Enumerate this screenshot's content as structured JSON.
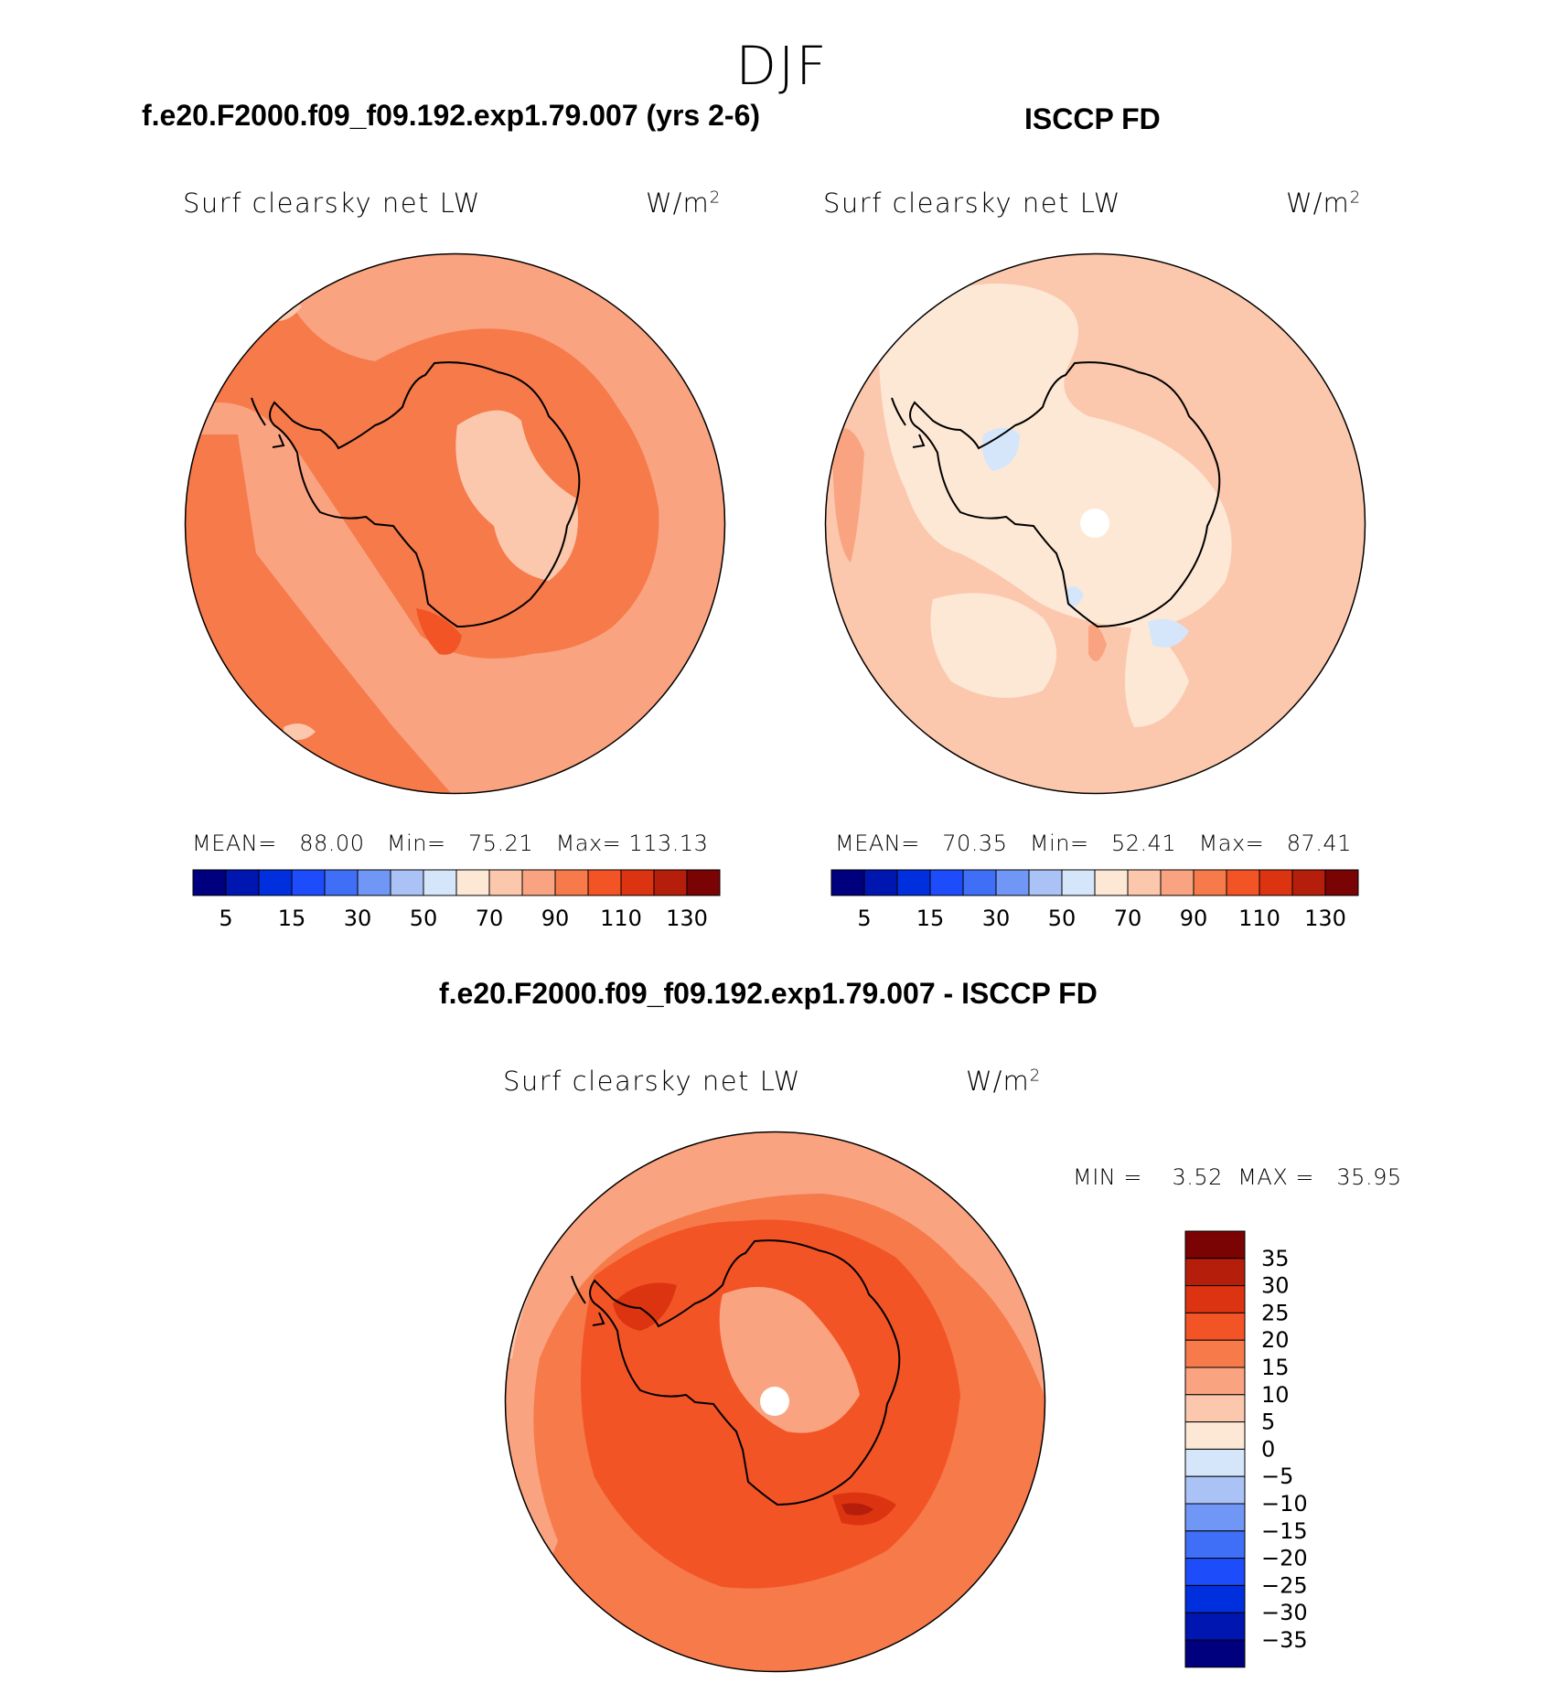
{
  "page": {
    "season_title": "DJF"
  },
  "panels": [
    {
      "case_title": "f.e20.F2000.f09_f09.192.exp1.79.007 (yrs 2-6)",
      "variable": "Surf clearsky net LW",
      "units": "W/m",
      "units_exp": "2",
      "stats": {
        "mean_label": "MEAN=",
        "mean": "88.00",
        "min_label": "Min=",
        "min": "75.21",
        "max_label": "Max=",
        "max": "113.13"
      }
    },
    {
      "case_title": "ISCCP FD",
      "variable": "Surf clearsky net LW",
      "units": "W/m",
      "units_exp": "2",
      "stats": {
        "mean_label": "MEAN=",
        "mean": "70.35",
        "min_label": "Min=",
        "min": "52.41",
        "max_label": "Max=",
        "max": "87.41"
      }
    },
    {
      "case_title": "f.e20.F2000.f09_f09.192.exp1.79.007 - ISCCP FD",
      "variable": "Surf clearsky net LW",
      "units": "W/m",
      "units_exp": "2",
      "stats": {
        "min_label": "MIN =",
        "min": "3.52",
        "max_label": "MAX =",
        "max": "35.95"
      }
    }
  ],
  "colorbar_abs": {
    "colors": [
      "#00007f",
      "#0016b0",
      "#0030dd",
      "#1d4dfa",
      "#3f6ff7",
      "#7097f5",
      "#aac2f6",
      "#d5e6fa",
      "#fde8d6",
      "#fbc8ad",
      "#f9a380",
      "#f67a4a",
      "#f25426",
      "#dc3411",
      "#b41e0b",
      "#7a0404"
    ],
    "tick_labels": [
      "5",
      "15",
      "30",
      "50",
      "70",
      "90",
      "110",
      "130"
    ]
  },
  "colorbar_diff": {
    "colors": [
      "#7a0404",
      "#b41e0b",
      "#dc3411",
      "#f25426",
      "#f67a4a",
      "#f9a380",
      "#fbc8ad",
      "#fde8d6",
      "#d5e6fa",
      "#aac2f6",
      "#7097f5",
      "#3f6ff7",
      "#1d4dfa",
      "#0030dd",
      "#0016b0",
      "#00007f"
    ],
    "tick_labels": [
      "35",
      "30",
      "25",
      "20",
      "15",
      "10",
      "5",
      "0",
      "−5",
      "−10",
      "−15",
      "−20",
      "−25",
      "−30",
      "−35"
    ]
  },
  "map_colors": {
    "model_base": "#f9a380",
    "model_high": "#f67a4a",
    "model_low": "#fbc8ad",
    "model_max": "#f25426",
    "obs_base": "#fbc8ad",
    "obs_low": "#fde8d6",
    "obs_neg": "#d5e6fa",
    "obs_high": "#f9a380",
    "diff_base": "#f67a4a",
    "diff_high": "#f25426",
    "diff_low": "#f9a380",
    "diff_lower": "#fbc8ad",
    "diff_max": "#dc3411",
    "diff_top": "#b41e0b",
    "coast": "#000000"
  }
}
